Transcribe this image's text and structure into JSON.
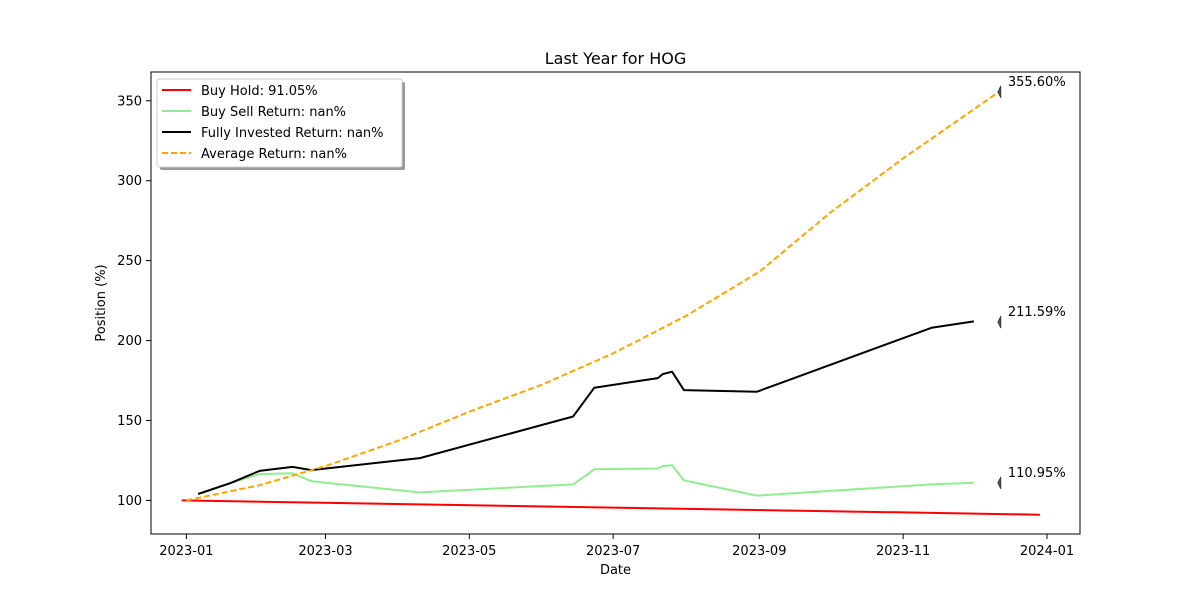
{
  "chart_data": {
    "type": "line",
    "title": "Last Year for HOG",
    "xlabel": "Date",
    "ylabel": "Position (%)",
    "x_ticks": [
      "2023-01",
      "2023-03",
      "2023-05",
      "2023-07",
      "2023-09",
      "2023-11",
      "2024-01"
    ],
    "y_ticks": [
      100,
      150,
      200,
      250,
      300,
      350
    ],
    "xlim": [
      "2022-12-17",
      "2024-01-15"
    ],
    "ylim": [
      79,
      368
    ],
    "grid": false,
    "legend_placement": "top-left",
    "series": [
      {
        "name": "Buy Hold: 91.05%",
        "color": "#ff0000",
        "style": "solid",
        "points": [
          [
            "2022-12-30",
            100.0
          ],
          [
            "2023-12-29",
            91.05
          ]
        ]
      },
      {
        "name": "Buy Sell Return: nan%",
        "color": "#90ee90",
        "style": "solid",
        "points": [
          [
            "2023-01-06",
            104
          ],
          [
            "2023-01-20",
            111
          ],
          [
            "2023-02-01",
            116.5
          ],
          [
            "2023-02-15",
            117
          ],
          [
            "2023-02-23",
            112
          ],
          [
            "2023-04-10",
            105
          ],
          [
            "2023-06-14",
            110
          ],
          [
            "2023-06-23",
            119.5
          ],
          [
            "2023-07-20",
            120
          ],
          [
            "2023-07-22",
            121.5
          ],
          [
            "2023-07-26",
            122
          ],
          [
            "2023-07-31",
            112.5
          ],
          [
            "2023-08-31",
            103
          ],
          [
            "2023-11-13",
            110
          ],
          [
            "2023-12-01",
            111
          ]
        ]
      },
      {
        "name": "Fully Invested Return: nan%",
        "color": "#000000",
        "style": "solid",
        "points": [
          [
            "2023-01-06",
            104
          ],
          [
            "2023-01-20",
            111
          ],
          [
            "2023-02-01",
            118.5
          ],
          [
            "2023-02-15",
            121
          ],
          [
            "2023-02-23",
            119
          ],
          [
            "2023-04-10",
            126.5
          ],
          [
            "2023-06-14",
            152.5
          ],
          [
            "2023-06-23",
            170.5
          ],
          [
            "2023-07-20",
            176.5
          ],
          [
            "2023-07-22",
            179
          ],
          [
            "2023-07-26",
            180.5
          ],
          [
            "2023-07-31",
            169
          ],
          [
            "2023-08-31",
            168
          ],
          [
            "2023-11-13",
            208
          ],
          [
            "2023-12-01",
            212
          ]
        ]
      },
      {
        "name": "Average Return: nan%",
        "color": "#ffa500",
        "style": "dashed",
        "points": [
          [
            "2023-01-01",
            100
          ],
          [
            "2023-02-01",
            109.5
          ],
          [
            "2023-03-01",
            121.5
          ],
          [
            "2023-04-01",
            137.5
          ],
          [
            "2023-05-01",
            155.5
          ],
          [
            "2023-06-01",
            172.5
          ],
          [
            "2023-07-01",
            192
          ],
          [
            "2023-08-01",
            215.5
          ],
          [
            "2023-09-01",
            243
          ],
          [
            "2023-10-01",
            280
          ],
          [
            "2023-11-01",
            314
          ],
          [
            "2023-12-12",
            356
          ]
        ]
      }
    ],
    "annotations": [
      {
        "text": "355.60%",
        "x": "2023-12-12",
        "y": 355.6
      },
      {
        "text": "211.59%",
        "x": "2023-12-12",
        "y": 211.59
      },
      {
        "text": "110.95%",
        "x": "2023-12-12",
        "y": 110.95
      }
    ]
  }
}
